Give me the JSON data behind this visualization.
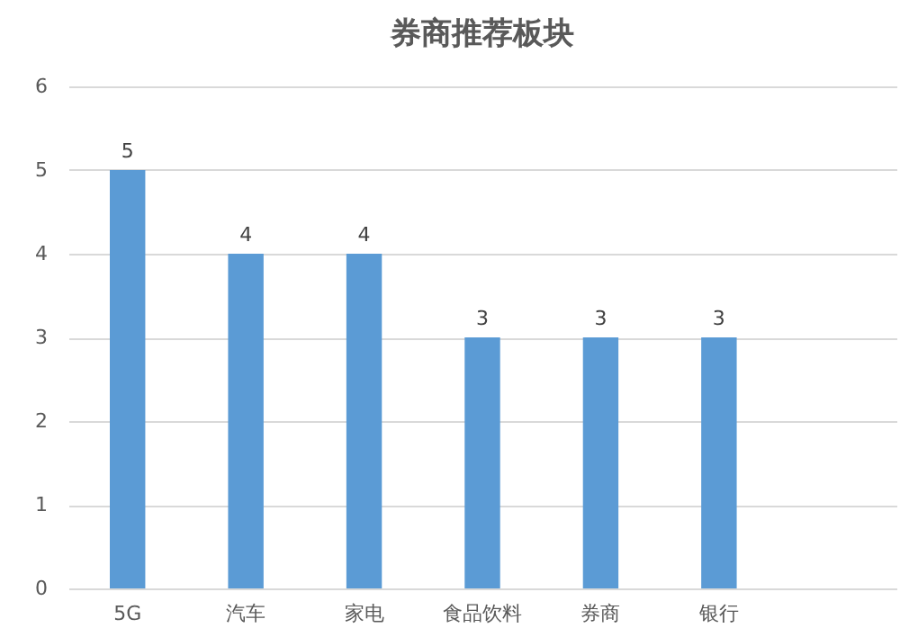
{
  "chart_data": {
    "type": "bar",
    "title": "券商推荐板块",
    "categories": [
      "5G",
      "汽车",
      "家电",
      "食品饮料",
      "券商",
      "银行",
      null
    ],
    "values": [
      5,
      4,
      4,
      3,
      3,
      3,
      null
    ],
    "color": "#5b9bd5",
    "ylim": [
      0,
      6
    ],
    "yticks": [
      0,
      1,
      2,
      3,
      4,
      5,
      6
    ],
    "grid": "y",
    "data_labels": true
  }
}
